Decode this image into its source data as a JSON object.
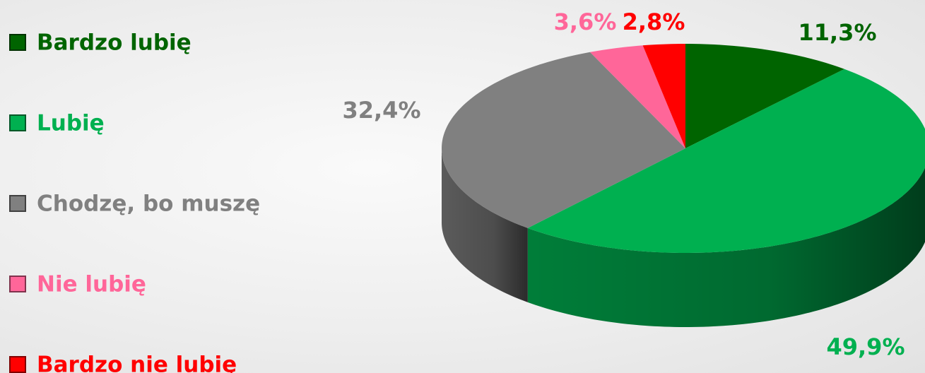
{
  "chart_data": {
    "type": "pie",
    "categories": [
      "Bardzo lubię",
      "Lubię",
      "Chodzę, bo muszę",
      "Nie lubię",
      "Bardzo nie lubię"
    ],
    "values": [
      11.3,
      49.9,
      32.4,
      3.6,
      2.8
    ],
    "value_labels": [
      "11,3%",
      "49,9%",
      "32,4%",
      "3,6%",
      "2,8%"
    ],
    "colors": [
      "#006400",
      "#00b050",
      "#808080",
      "#ff6699",
      "#ff0000"
    ]
  }
}
